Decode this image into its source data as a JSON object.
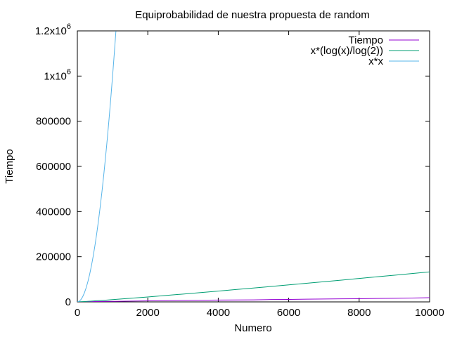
{
  "chart_data": {
    "type": "line",
    "title": "Equiprobabilidad de nuestra propuesta de random",
    "xlabel": "Numero",
    "ylabel": "Tiempo",
    "xlim": [
      0,
      10000
    ],
    "ylim": [
      0,
      1200000
    ],
    "grid": false,
    "legend_position": "top-right",
    "x_ticks": [
      {
        "value": 0,
        "label": "0"
      },
      {
        "value": 2000,
        "label": "2000"
      },
      {
        "value": 4000,
        "label": "4000"
      },
      {
        "value": 6000,
        "label": "6000"
      },
      {
        "value": 8000,
        "label": "8000"
      },
      {
        "value": 10000,
        "label": "10000"
      }
    ],
    "y_ticks": [
      {
        "value": 0,
        "label": "0"
      },
      {
        "value": 200000,
        "label": "200000"
      },
      {
        "value": 400000,
        "label": "400000"
      },
      {
        "value": 600000,
        "label": "600000"
      },
      {
        "value": 800000,
        "label": "800000"
      },
      {
        "value": 1000000,
        "label": "1x10",
        "exp": "6"
      },
      {
        "value": 1200000,
        "label": "1.2x10",
        "exp": "6"
      }
    ],
    "series": [
      {
        "name": "Tiempo",
        "color": "#9400d3",
        "x": [
          0,
          500,
          1000,
          1500,
          2000,
          2500,
          3000,
          3500,
          4000,
          4500,
          5000,
          5500,
          6000,
          6500,
          7000,
          7500,
          8000,
          8500,
          9000,
          9500,
          10000
        ],
        "y": [
          0,
          1500,
          2500,
          3500,
          4500,
          5500,
          6500,
          7500,
          8000,
          8500,
          9000,
          10500,
          11000,
          12000,
          13000,
          13500,
          14000,
          15000,
          16000,
          17000,
          18500
        ]
      },
      {
        "name": "x*(log(x)/log(2))",
        "color": "#009e73",
        "x": [
          1,
          250,
          500,
          750,
          1000,
          1500,
          2000,
          2500,
          3000,
          3500,
          4000,
          4500,
          5000,
          5500,
          6000,
          6500,
          7000,
          7500,
          8000,
          8500,
          9000,
          9500,
          10000
        ],
        "y": [
          0,
          1992,
          4483,
          7166,
          9966,
          15826,
          21932,
          28219,
          34652,
          41208,
          47863,
          54617,
          61439,
          68340,
          75304,
          82335,
          89415,
          96549,
          103726,
          110949,
          118226,
          125536,
          132877
        ]
      },
      {
        "name": "x*x",
        "color": "#56b4e9",
        "x": [
          0,
          50,
          100,
          150,
          200,
          250,
          300,
          350,
          400,
          450,
          500,
          550,
          600,
          650,
          700,
          750,
          800,
          850,
          900,
          950,
          1000,
          1050,
          1095
        ],
        "y": [
          0,
          2500,
          10000,
          22500,
          40000,
          62500,
          90000,
          122500,
          160000,
          202500,
          250000,
          302500,
          360000,
          422500,
          490000,
          562500,
          640000,
          722500,
          810000,
          902500,
          1000000,
          1102500,
          1199025
        ]
      }
    ]
  }
}
